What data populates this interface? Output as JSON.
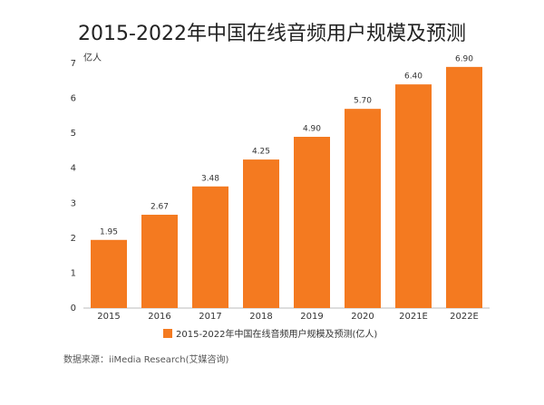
{
  "chart_data": {
    "type": "bar",
    "title": "2015-2022年中国在线音频用户规模及预测",
    "y_unit": "亿人",
    "categories": [
      "2015",
      "2016",
      "2017",
      "2018",
      "2019",
      "2020",
      "2021E",
      "2022E"
    ],
    "series": [
      {
        "name": "2015-2022年中国在线音频用户规模及预测(亿人)",
        "color": "#f47a20",
        "values": [
          1.95,
          2.67,
          3.48,
          4.25,
          4.9,
          5.7,
          6.4,
          6.9
        ],
        "value_labels": [
          "1.95",
          "2.67",
          "3.48",
          "4.25",
          "4.90",
          "5.70",
          "6.40",
          "6.90"
        ]
      }
    ],
    "ylim": [
      0,
      7
    ],
    "yticks": [
      0,
      1,
      2,
      3,
      4,
      5,
      6,
      7
    ],
    "source": "数据来源：iiMedia Research(艾媒咨询)"
  }
}
